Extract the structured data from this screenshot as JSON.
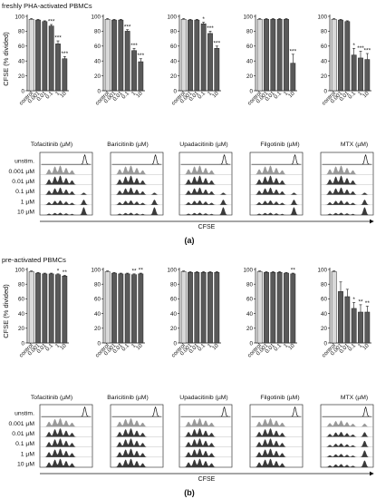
{
  "panels": [
    {
      "id": "a",
      "title": "freshly PHA-activated PBMCs",
      "panel_label": "(a)",
      "ylabel": "CFSE (% divided)",
      "hist_xlabel": "CFSE"
    },
    {
      "id": "b",
      "title": "pre-activated PBMCs",
      "panel_label": "(b)",
      "ylabel": "CFSE (% divided)",
      "hist_xlabel": "CFSE"
    }
  ],
  "hist_row_labels": [
    "unstim.",
    "0.001 µM",
    "0.01 µM",
    "0.1 µM",
    "1 µM",
    "10 µM"
  ],
  "colors": {
    "control_bar": "#d9d9d9",
    "treated_bar": "#595959",
    "hist_fill": "#3a3a3a",
    "hist_unstim_fill": "#9a9a9a"
  },
  "chart_data": [
    {
      "panel": "a",
      "type": "bar",
      "categories": [
        "control",
        "0.001",
        "0.01",
        "0.1",
        "1",
        "10"
      ],
      "ylim": [
        0,
        100
      ],
      "yticks": [
        0,
        20,
        40,
        60,
        80,
        100
      ],
      "drugs": [
        {
          "name": "Tofacitinib (µM)",
          "values": [
            96,
            95,
            93,
            87,
            63,
            43
          ],
          "errors": [
            1,
            1,
            1,
            2,
            4,
            3
          ],
          "stars": [
            "",
            "",
            "",
            "***",
            "***",
            "***"
          ],
          "stars2": [
            "",
            "",
            "",
            "",
            "",
            ""
          ],
          "stars2_values": []
        },
        {
          "name": "Baricitinib (µM)",
          "values": [
            96,
            95,
            95,
            80,
            54,
            39
          ],
          "errors": [
            1,
            1,
            1,
            2,
            3,
            4
          ],
          "stars": [
            "",
            "",
            "",
            "***",
            "***",
            "***"
          ]
        },
        {
          "name": "Upadacitinib (µM)",
          "values": [
            96,
            95,
            95,
            90,
            77,
            57
          ],
          "errors": [
            1,
            1,
            1,
            2,
            3,
            3
          ],
          "stars": [
            "",
            "",
            "",
            "*",
            "***",
            "***"
          ]
        },
        {
          "name": "Filgotinib (µM)",
          "values": [
            96,
            96,
            96,
            96,
            96,
            37
          ],
          "errors": [
            1,
            1,
            1,
            1,
            1,
            12
          ],
          "stars": [
            "",
            "",
            "",
            "",
            "",
            "***"
          ]
        },
        {
          "name": "MTX (µM)",
          "values": [
            96,
            95,
            93,
            48,
            44,
            42
          ],
          "errors": [
            1,
            1,
            1,
            9,
            9,
            8
          ],
          "stars": [
            "",
            "",
            "",
            "*",
            "***",
            "***"
          ]
        }
      ]
    },
    {
      "panel": "b",
      "type": "bar",
      "categories": [
        "control",
        "0.001",
        "0.01",
        "0.1",
        "1",
        "10"
      ],
      "ylim": [
        0,
        100
      ],
      "yticks": [
        0,
        20,
        40,
        60,
        80,
        100
      ],
      "drugs": [
        {
          "name": "Tofacitinib (µM)",
          "values": [
            97,
            95,
            94,
            94,
            93,
            91
          ],
          "errors": [
            1,
            1,
            1,
            1,
            1,
            1
          ],
          "stars": [
            "",
            "",
            "",
            "",
            "*",
            "**"
          ]
        },
        {
          "name": "Baricitinib (µM)",
          "values": [
            97,
            95,
            94,
            94,
            93,
            94
          ],
          "errors": [
            1,
            1,
            1,
            1,
            1,
            1
          ],
          "stars": [
            "",
            "",
            "",
            "",
            "**",
            "**"
          ]
        },
        {
          "name": "Upadacitinib (µM)",
          "values": [
            97,
            96,
            96,
            96,
            96,
            96
          ],
          "errors": [
            1,
            1,
            1,
            1,
            1,
            1
          ],
          "stars": [
            "",
            "",
            "",
            "",
            "",
            ""
          ]
        },
        {
          "name": "Filgotinib (µM)",
          "values": [
            97,
            96,
            96,
            96,
            95,
            94
          ],
          "errors": [
            1,
            1,
            1,
            1,
            1,
            1
          ],
          "stars": [
            "",
            "",
            "",
            "",
            "",
            "**"
          ]
        },
        {
          "name": "MTX (µM)",
          "values": [
            97,
            70,
            63,
            47,
            42,
            42
          ],
          "errors": [
            1,
            13,
            10,
            8,
            10,
            8
          ],
          "stars": [
            "",
            "",
            "",
            "*",
            "**",
            "**"
          ]
        }
      ]
    }
  ]
}
